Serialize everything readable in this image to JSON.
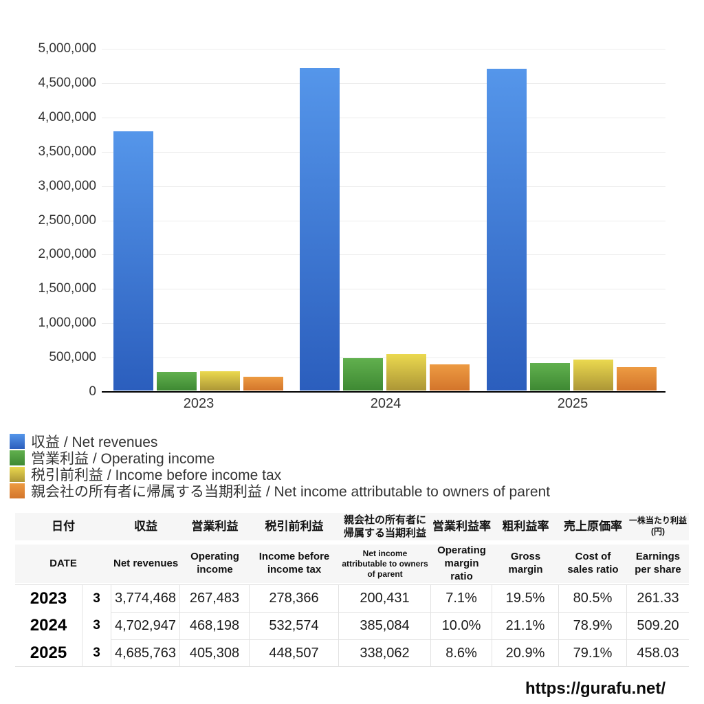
{
  "chart_data": {
    "type": "bar",
    "title": "",
    "xlabel": "",
    "ylabel": "",
    "categories": [
      "2023",
      "2024",
      "2025"
    ],
    "series": [
      {
        "key": "net-revenues",
        "name": "収益 / Net revenues",
        "color_top": "#5596EA",
        "color_bottom": "#2B5EBD",
        "values": [
          3774468,
          4702947,
          4685763
        ]
      },
      {
        "key": "operating-income",
        "name": "営業利益 / Operating income",
        "color_top": "#61B04E",
        "color_bottom": "#3E8933",
        "values": [
          267483,
          468198,
          405308
        ]
      },
      {
        "key": "income-before-income-tax",
        "name": "税引前利益 / Income before income tax",
        "color_top": "#EBD94F",
        "color_bottom": "#AC9636",
        "values": [
          278366,
          532574,
          448507
        ]
      },
      {
        "key": "net-income-attributable-to-owners-of-parent",
        "name": "親会社の所有者に帰属する当期利益 / Net income attributable to owners of parent",
        "color_top": "#ED9B42",
        "color_bottom": "#D3752B",
        "values": [
          200431,
          385084,
          338062
        ]
      }
    ],
    "ylim": [
      0,
      5000000
    ],
    "ytick_step": 500000,
    "ytick_labels": [
      "0",
      "500,000",
      "1,000,000",
      "1,500,000",
      "2,000,000",
      "2,500,000",
      "3,000,000",
      "3,500,000",
      "4,000,000",
      "4,500,000",
      "5,000,000"
    ],
    "grid": true,
    "gridline_color": "#ECECEC",
    "legend_position": "bottom-left"
  },
  "table": {
    "columns": [
      {
        "jp": "日付",
        "en": "DATE"
      },
      {
        "jp": "収益",
        "en": "Net revenues"
      },
      {
        "jp": "営業利益",
        "en": "Operating income"
      },
      {
        "jp": "税引前利益",
        "en": "Income before income tax"
      },
      {
        "jp": "親会社の所有者に帰属する当期利益",
        "en": "Net income attributable to owners of parent"
      },
      {
        "jp": "営業利益率",
        "en": "Operating margin ratio"
      },
      {
        "jp": "粗利益率",
        "en": "Gross margin"
      },
      {
        "jp": "売上原価率",
        "en": "Cost of sales ratio"
      },
      {
        "jp": "一株当たり利益(円)",
        "en": "Earnings per share"
      }
    ],
    "rows": [
      {
        "year": "2023",
        "month": "3",
        "values": [
          "3,774,468",
          "267,483",
          "278,366",
          "200,431",
          "7.1%",
          "19.5%",
          "80.5%",
          "261.33"
        ]
      },
      {
        "year": "2024",
        "month": "3",
        "values": [
          "4,702,947",
          "468,198",
          "532,574",
          "385,084",
          "10.0%",
          "21.1%",
          "78.9%",
          "509.20"
        ]
      },
      {
        "year": "2025",
        "month": "3",
        "values": [
          "4,685,763",
          "405,308",
          "448,507",
          "338,062",
          "8.6%",
          "20.9%",
          "79.1%",
          "458.03"
        ]
      }
    ]
  },
  "footer": {
    "url": "https://gurafu.net/"
  }
}
